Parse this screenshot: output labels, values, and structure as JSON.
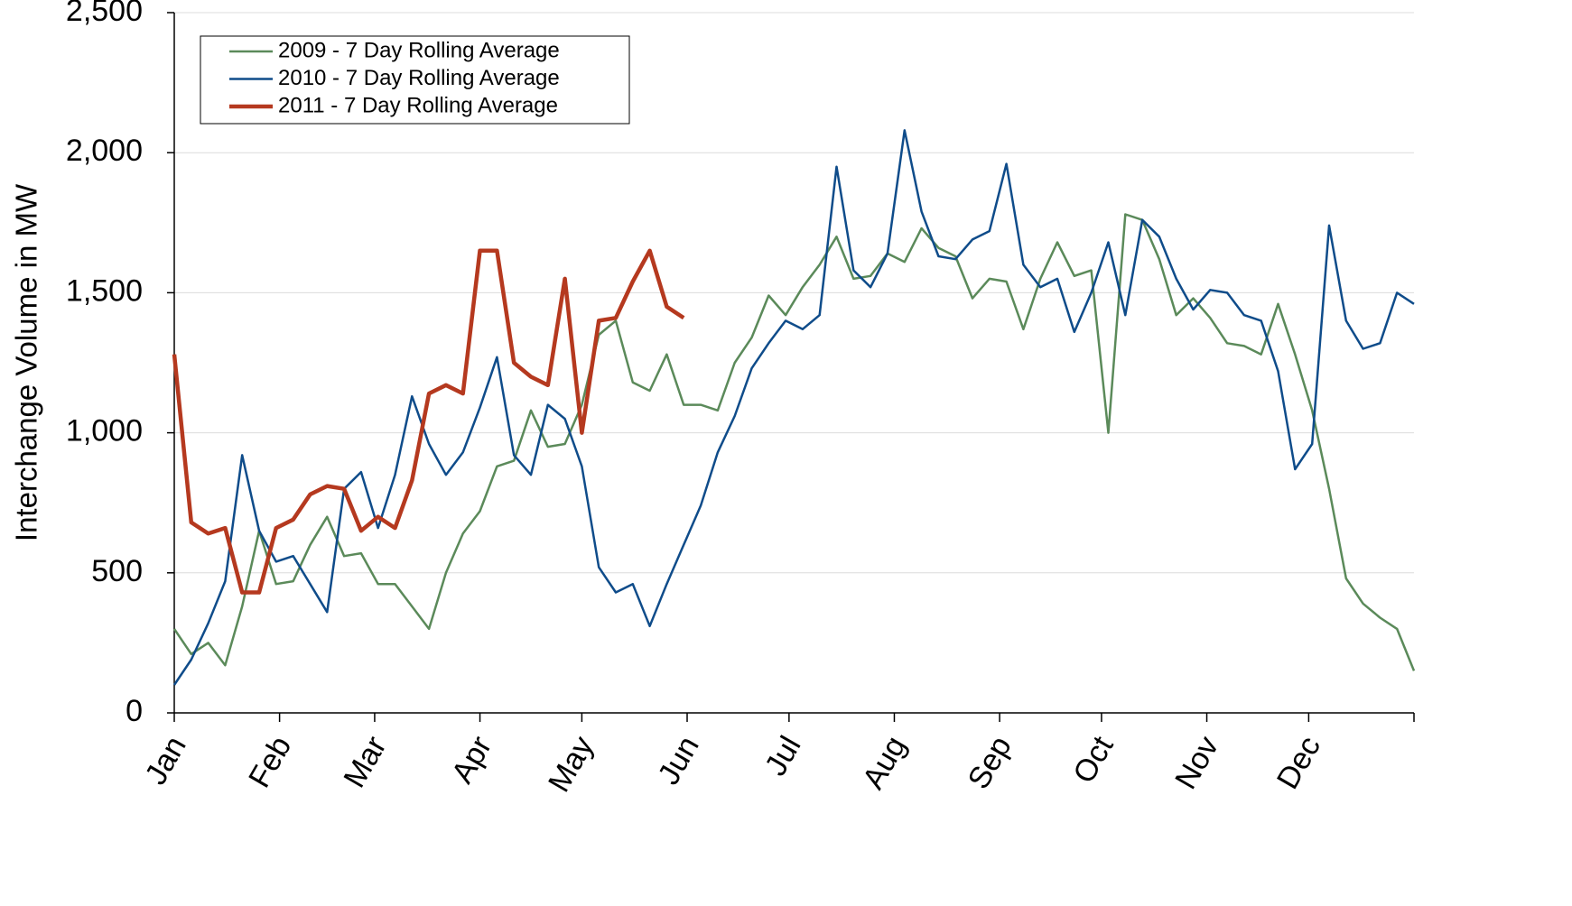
{
  "chart_data": {
    "type": "line",
    "y_label": "Interchange Volume in MW",
    "x": [
      1,
      6,
      11,
      16,
      21,
      26,
      31,
      36,
      41,
      46,
      51,
      56,
      61,
      66,
      71,
      76,
      81,
      86,
      91,
      96,
      101,
      106,
      111,
      116,
      121,
      126,
      131,
      136,
      141,
      146,
      151,
      156,
      161,
      166,
      171,
      176,
      181,
      186,
      191,
      196,
      201,
      206,
      211,
      216,
      221,
      226,
      231,
      236,
      241,
      246,
      251,
      256,
      261,
      266,
      271,
      276,
      281,
      286,
      291,
      296,
      301,
      306,
      311,
      316,
      321,
      326,
      331,
      336,
      341,
      346,
      351,
      356,
      361,
      366
    ],
    "xlim": [
      1,
      366
    ],
    "xticks": [
      {
        "value": 1,
        "label": "Jan"
      },
      {
        "value": 32,
        "label": "Feb"
      },
      {
        "value": 60,
        "label": "Mar"
      },
      {
        "value": 91,
        "label": "Apr"
      },
      {
        "value": 121,
        "label": "May"
      },
      {
        "value": 152,
        "label": "Jun"
      },
      {
        "value": 182,
        "label": "Jul"
      },
      {
        "value": 213,
        "label": "Aug"
      },
      {
        "value": 244,
        "label": "Sep"
      },
      {
        "value": 274,
        "label": "Oct"
      },
      {
        "value": 305,
        "label": "Nov"
      },
      {
        "value": 335,
        "label": "Dec"
      }
    ],
    "ylim": [
      0,
      2500
    ],
    "yticks": [
      0,
      {
        "value": 500,
        "label": "500"
      },
      {
        "value": 1000,
        "label": "1,000"
      },
      {
        "value": 1500,
        "label": "1,500"
      },
      {
        "value": 2000,
        "label": "2,000"
      },
      {
        "value": 2500,
        "label": "2,500"
      }
    ],
    "grid": true,
    "legend": "upper left",
    "series": [
      {
        "name": "2009 - 7 Day Rolling Average",
        "color": "#5b8a5a",
        "line_width": 2.5,
        "values": [
          300,
          210,
          250,
          170,
          380,
          650,
          460,
          470,
          600,
          700,
          560,
          570,
          460,
          460,
          380,
          300,
          500,
          640,
          720,
          880,
          900,
          1080,
          950,
          960,
          1100,
          1350,
          1400,
          1180,
          1150,
          1280,
          1100,
          1100,
          1080,
          1250,
          1340,
          1490,
          1420,
          1520,
          1600,
          1700,
          1550,
          1560,
          1640,
          1610,
          1730,
          1660,
          1630,
          1480,
          1550,
          1540,
          1370,
          1550,
          1680,
          1560,
          1580,
          1000,
          1780,
          1760,
          1620,
          1420,
          1480,
          1410,
          1320,
          1310,
          1280,
          1460,
          1280,
          1080,
          800,
          480,
          390,
          340,
          300,
          150
        ]
      },
      {
        "name": "2010 - 7 Day Rolling Average",
        "color": "#0f4c8a",
        "line_width": 2.5,
        "values": [
          100,
          190,
          320,
          470,
          920,
          650,
          540,
          560,
          460,
          360,
          800,
          860,
          660,
          850,
          1130,
          960,
          850,
          930,
          1090,
          1270,
          920,
          850,
          1100,
          1050,
          880,
          520,
          430,
          460,
          310,
          460,
          600,
          740,
          930,
          1060,
          1230,
          1320,
          1400,
          1370,
          1420,
          1950,
          1580,
          1520,
          1640,
          2080,
          1790,
          1630,
          1620,
          1690,
          1720,
          1960,
          1600,
          1520,
          1550,
          1360,
          1500,
          1680,
          1420,
          1760,
          1700,
          1550,
          1440,
          1510,
          1500,
          1420,
          1400,
          1220,
          870,
          960,
          1740,
          1400,
          1300,
          1320,
          1500,
          1460
        ]
      },
      {
        "name": "2011 - 7 Day Rolling Average",
        "color": "#b5391f",
        "line_width": 4.5,
        "values": [
          1280,
          680,
          640,
          660,
          430,
          430,
          660,
          690,
          780,
          810,
          800,
          650,
          700,
          660,
          830,
          1140,
          1170,
          1140,
          1650,
          1650,
          1250,
          1200,
          1170,
          1550,
          1000,
          1400,
          1410,
          1540,
          1650,
          1450,
          1410,
          null,
          null,
          null,
          null,
          null,
          null,
          null,
          null,
          null,
          null,
          null,
          null,
          null,
          null,
          null,
          null,
          null,
          null,
          null,
          null,
          null,
          null,
          null,
          null,
          null,
          null,
          null,
          null,
          null,
          null,
          null,
          null,
          null,
          null,
          null,
          null,
          null,
          null,
          null,
          null,
          null,
          null,
          null
        ]
      }
    ]
  }
}
